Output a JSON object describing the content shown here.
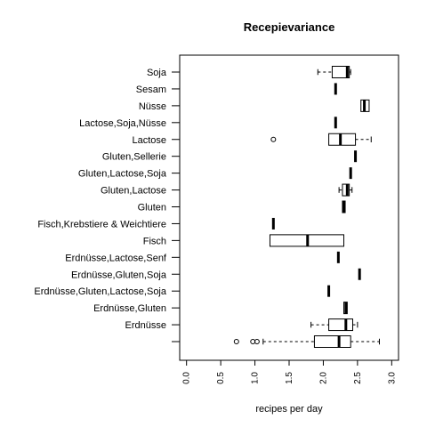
{
  "chart_data": {
    "type": "boxplot",
    "orientation": "horizontal",
    "title": "Recepievariance",
    "xlabel": "recipes per day",
    "ylabel": "",
    "xlim": [
      -0.1,
      3.1
    ],
    "x_ticks": [
      "0.0",
      "0.5",
      "1.0",
      "1.5",
      "2.0",
      "2.5",
      "3.0"
    ],
    "grid": false,
    "categories": [
      {
        "label": "Soja",
        "min": 1.92,
        "q1": 2.13,
        "median": 2.35,
        "q3": 2.38,
        "max": 2.4,
        "outliers": []
      },
      {
        "label": "Sesam",
        "min": 2.18,
        "q1": 2.18,
        "median": 2.18,
        "q3": 2.18,
        "max": 2.18,
        "outliers": []
      },
      {
        "label": "Nüsse",
        "min": 2.55,
        "q1": 2.55,
        "median": 2.6,
        "q3": 2.67,
        "max": 2.67,
        "outliers": []
      },
      {
        "label": "Lactose,Soja,Nüsse",
        "min": 2.18,
        "q1": 2.18,
        "median": 2.18,
        "q3": 2.18,
        "max": 2.18,
        "outliers": []
      },
      {
        "label": "Lactose",
        "min": 2.08,
        "q1": 2.08,
        "median": 2.25,
        "q3": 2.47,
        "max": 2.7,
        "outliers": [
          1.27
        ]
      },
      {
        "label": "Gluten,Sellerie",
        "min": 2.47,
        "q1": 2.47,
        "median": 2.47,
        "q3": 2.47,
        "max": 2.47,
        "outliers": []
      },
      {
        "label": "Gluten,Lactose,Soja",
        "min": 2.4,
        "q1": 2.4,
        "median": 2.4,
        "q3": 2.4,
        "max": 2.4,
        "outliers": []
      },
      {
        "label": "Gluten,Lactose",
        "min": 2.23,
        "q1": 2.28,
        "median": 2.35,
        "q3": 2.38,
        "max": 2.42,
        "outliers": []
      },
      {
        "label": "Gluten",
        "min": 2.28,
        "q1": 2.28,
        "median": 2.3,
        "q3": 2.32,
        "max": 2.32,
        "outliers": []
      },
      {
        "label": "Fisch,Krebstiere & Weichtiere",
        "min": 1.27,
        "q1": 1.27,
        "median": 1.27,
        "q3": 1.27,
        "max": 1.27,
        "outliers": []
      },
      {
        "label": "Fisch",
        "min": 1.22,
        "q1": 1.22,
        "median": 1.77,
        "q3": 2.3,
        "max": 2.3,
        "outliers": []
      },
      {
        "label": "Erdnüsse,Lactose,Senf",
        "min": 2.22,
        "q1": 2.22,
        "median": 2.22,
        "q3": 2.22,
        "max": 2.22,
        "outliers": []
      },
      {
        "label": "Erdnüsse,Gluten,Soja",
        "min": 2.53,
        "q1": 2.53,
        "median": 2.53,
        "q3": 2.53,
        "max": 2.53,
        "outliers": []
      },
      {
        "label": "Erdnüsse,Gluten,Lactose,Soja",
        "min": 2.08,
        "q1": 2.08,
        "median": 2.08,
        "q3": 2.08,
        "max": 2.08,
        "outliers": []
      },
      {
        "label": "Erdnüsse,Gluten",
        "min": 2.3,
        "q1": 2.3,
        "median": 2.33,
        "q3": 2.35,
        "max": 2.35,
        "outliers": []
      },
      {
        "label": "Erdnüsse",
        "min": 1.82,
        "q1": 2.08,
        "median": 2.33,
        "q3": 2.43,
        "max": 2.5,
        "outliers": []
      },
      {
        "label": "",
        "min": 1.12,
        "q1": 1.87,
        "median": 2.23,
        "q3": 2.4,
        "max": 2.82,
        "outliers": [
          0.73,
          0.97,
          1.03
        ]
      }
    ]
  }
}
